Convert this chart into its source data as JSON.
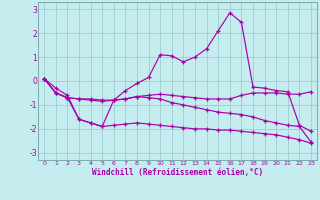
{
  "xlabel": "Windchill (Refroidissement éolien,°C)",
  "xlim": [
    -0.5,
    23.5
  ],
  "ylim": [
    -3.3,
    3.3
  ],
  "yticks": [
    -3,
    -2,
    -1,
    0,
    1,
    2,
    3
  ],
  "xticks": [
    0,
    1,
    2,
    3,
    4,
    5,
    6,
    7,
    8,
    9,
    10,
    11,
    12,
    13,
    14,
    15,
    16,
    17,
    18,
    19,
    20,
    21,
    22,
    23
  ],
  "background_color": "#c5ecee",
  "line_color": "#aa00aa",
  "grid_color": "#9ecece",
  "line1_x": [
    0,
    1,
    2,
    3,
    4,
    5,
    6,
    7,
    8,
    9,
    10,
    11,
    12,
    13,
    14,
    15,
    16,
    17,
    18,
    19,
    20,
    21,
    22,
    23
  ],
  "line1_y": [
    0.1,
    -0.5,
    -0.7,
    -0.75,
    -0.75,
    -0.8,
    -0.8,
    -0.75,
    -0.65,
    -0.6,
    -0.55,
    -0.6,
    -0.65,
    -0.7,
    -0.75,
    -0.75,
    -0.75,
    -0.6,
    -0.5,
    -0.5,
    -0.5,
    -0.55,
    -0.55,
    -0.45
  ],
  "line2_x": [
    0,
    1,
    2,
    3,
    4,
    5,
    6,
    7,
    8,
    9,
    10,
    11,
    12,
    13,
    14,
    15,
    16,
    17,
    18,
    19,
    20,
    21,
    22,
    23
  ],
  "line2_y": [
    0.1,
    -0.3,
    -0.6,
    -1.6,
    -1.75,
    -1.9,
    -0.8,
    -0.4,
    -0.1,
    0.15,
    1.1,
    1.05,
    0.8,
    1.0,
    1.35,
    2.1,
    2.85,
    2.45,
    -0.25,
    -0.3,
    -0.4,
    -0.45,
    -1.85,
    -2.1
  ],
  "line3_x": [
    0,
    1,
    2,
    3,
    4,
    5,
    6,
    7,
    8,
    9,
    10,
    11,
    12,
    13,
    14,
    15,
    16,
    17,
    18,
    19,
    20,
    21,
    22,
    23
  ],
  "line3_y": [
    0.1,
    -0.5,
    -0.7,
    -0.75,
    -0.8,
    -0.85,
    -0.8,
    -0.75,
    -0.65,
    -0.7,
    -0.75,
    -0.9,
    -1.0,
    -1.1,
    -1.2,
    -1.3,
    -1.35,
    -1.4,
    -1.5,
    -1.65,
    -1.75,
    -1.85,
    -1.9,
    -2.55
  ],
  "line4_x": [
    0,
    1,
    2,
    3,
    4,
    5,
    6,
    7,
    8,
    9,
    10,
    11,
    12,
    13,
    14,
    15,
    16,
    17,
    18,
    19,
    20,
    21,
    22,
    23
  ],
  "line4_y": [
    0.1,
    -0.5,
    -0.7,
    -1.6,
    -1.75,
    -1.9,
    -1.85,
    -1.8,
    -1.75,
    -1.8,
    -1.85,
    -1.9,
    -1.95,
    -2.0,
    -2.0,
    -2.05,
    -2.05,
    -2.1,
    -2.15,
    -2.2,
    -2.25,
    -2.35,
    -2.45,
    -2.6
  ]
}
